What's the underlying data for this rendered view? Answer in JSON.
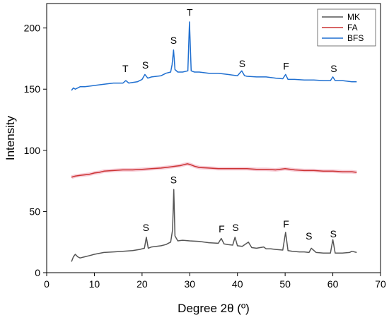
{
  "chart_data": {
    "type": "line",
    "title": "",
    "xlabel": "Degree 2θ (º)",
    "ylabel": "Intensity",
    "xlim": [
      0,
      70
    ],
    "ylim": [
      0,
      220
    ],
    "x_ticks": [
      0,
      10,
      20,
      30,
      40,
      50,
      60,
      70
    ],
    "y_ticks": [
      0,
      50,
      100,
      150,
      200
    ],
    "grid": false,
    "legend_position": "top-right",
    "series": [
      {
        "name": "MK",
        "color": "#555555",
        "x": [
          5.2,
          5.6,
          6.0,
          6.5,
          7.0,
          8.0,
          9.0,
          10.0,
          12.0,
          14.0,
          16.0,
          18.0,
          19.5,
          20.5,
          20.9,
          21.3,
          22.0,
          23.0,
          24.0,
          25.0,
          26.0,
          26.4,
          26.65,
          26.9,
          27.5,
          28.5,
          30.0,
          32.0,
          34.0,
          36.0,
          36.6,
          37.2,
          38.0,
          39.0,
          39.5,
          40.0,
          41.0,
          42.3,
          43.0,
          44.0,
          45.5,
          46.0,
          47.0,
          48.0,
          49.5,
          50.1,
          50.6,
          51.5,
          53.0,
          54.0,
          55.0,
          55.5,
          56.5,
          58.0,
          59.5,
          60.0,
          60.5,
          62.0,
          63.5,
          64.0,
          65.0
        ],
        "y": [
          9,
          13,
          15,
          13,
          12,
          13,
          14,
          15,
          16.5,
          17,
          17.5,
          18,
          19,
          20,
          29,
          20,
          21,
          21.5,
          22,
          23,
          25,
          35,
          68,
          30,
          26,
          26.5,
          26,
          25.5,
          24.5,
          24,
          28,
          23.5,
          23,
          22.5,
          29,
          22,
          21.5,
          25,
          20.5,
          20,
          21,
          19.5,
          19.5,
          19,
          18.5,
          33,
          18,
          17.5,
          17,
          17,
          16.5,
          20,
          16.5,
          16,
          16,
          27,
          16,
          16,
          16.5,
          17.5,
          16.5
        ]
      },
      {
        "name": "FA",
        "color": "#cc3333",
        "x": [
          5.2,
          6,
          7,
          8,
          9,
          10,
          11,
          12,
          14,
          16,
          18,
          20,
          22,
          24,
          26,
          27,
          28,
          29,
          29.5,
          30,
          31,
          32,
          34,
          36,
          38,
          40,
          42,
          44,
          46,
          48,
          50,
          52,
          54,
          56,
          58,
          60,
          62,
          64,
          65
        ],
        "y": [
          78,
          79,
          79.5,
          80,
          80.5,
          81.5,
          82,
          83,
          83.5,
          84,
          84,
          84.5,
          85,
          85.5,
          86.5,
          87,
          87.5,
          88.5,
          89,
          88.5,
          87,
          86,
          85.5,
          85,
          85,
          85,
          85,
          84.5,
          84.5,
          84,
          85,
          84,
          83.5,
          83.5,
          83,
          83,
          82.5,
          82.5,
          82
        ]
      },
      {
        "name": "BFS",
        "color": "#1f6fd0",
        "x": [
          5.2,
          5.6,
          6,
          7,
          8,
          10,
          12,
          14,
          16,
          16.6,
          17.2,
          18,
          19,
          20,
          20.6,
          21.2,
          22,
          24,
          25,
          26,
          26.3,
          26.6,
          26.9,
          27.5,
          28.5,
          29.6,
          29.95,
          30.3,
          31,
          32,
          34,
          36,
          38,
          40,
          40.9,
          41.5,
          42,
          44,
          46,
          48,
          49.5,
          50.1,
          50.6,
          52,
          54,
          56,
          58,
          59.5,
          60.0,
          60.5,
          62,
          64,
          65
        ],
        "y": [
          149,
          151,
          150,
          152,
          152,
          153,
          154,
          155,
          155,
          157,
          155,
          155.5,
          156,
          158,
          162,
          159,
          160,
          161,
          163,
          164,
          170,
          182,
          166,
          164,
          164,
          165,
          205,
          165,
          164,
          164,
          163,
          163,
          162,
          161,
          165,
          161,
          160.5,
          160,
          160,
          159,
          158.5,
          162,
          158,
          158,
          157.5,
          157.5,
          157,
          157,
          160,
          157,
          157,
          156,
          156
        ]
      }
    ],
    "annotations": [
      {
        "text": "T",
        "x": 16.5,
        "y": 164
      },
      {
        "text": "S",
        "x": 20.7,
        "y": 167
      },
      {
        "text": "S",
        "x": 26.6,
        "y": 187
      },
      {
        "text": "T",
        "x": 30.0,
        "y": 210
      },
      {
        "text": "S",
        "x": 41.0,
        "y": 168
      },
      {
        "text": "F",
        "x": 50.2,
        "y": 166
      },
      {
        "text": "S",
        "x": 60.2,
        "y": 164
      },
      {
        "text": "S",
        "x": 26.6,
        "y": 73
      },
      {
        "text": "S",
        "x": 20.8,
        "y": 34
      },
      {
        "text": "F",
        "x": 36.7,
        "y": 33
      },
      {
        "text": "S",
        "x": 39.6,
        "y": 34
      },
      {
        "text": "F",
        "x": 50.2,
        "y": 37
      },
      {
        "text": "S",
        "x": 55.0,
        "y": 27
      },
      {
        "text": "S",
        "x": 60.1,
        "y": 29
      }
    ]
  }
}
